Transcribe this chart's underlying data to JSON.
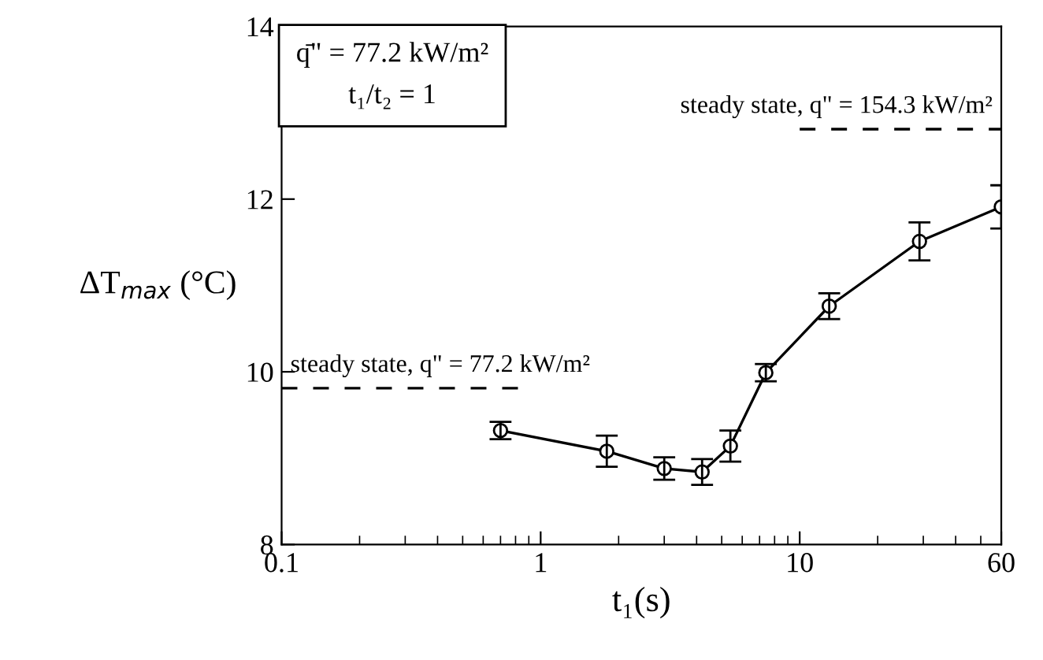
{
  "chart_data": {
    "type": "line",
    "xlabel": "t₁(s)",
    "ylabel": "ΔT$_{max}$ (°C)",
    "log": "x",
    "xlim": [
      0.1,
      60
    ],
    "xticks": [
      0.1,
      1,
      10,
      60
    ],
    "ylim": [
      8,
      14
    ],
    "yticks": [
      8,
      10,
      12,
      14
    ],
    "grid": false,
    "marker": "circle",
    "line_style": "solid",
    "series": [
      {
        "color": "#000000",
        "x": [
          0.7,
          1.8,
          3.0,
          4.2,
          5.4,
          7.4,
          13,
          29,
          60
        ],
        "values": [
          9.32,
          9.08,
          8.88,
          8.84,
          9.14,
          9.99,
          10.76,
          11.51,
          11.91
        ],
        "errors": [
          0.1,
          0.18,
          0.13,
          0.15,
          0.18,
          0.1,
          0.15,
          0.22,
          0.25
        ]
      },
      {
        "type": "line",
        "marker": "none",
        "line_style": "dashed",
        "color": "#000000",
        "x": [
          0.1,
          0.83
        ],
        "values": [
          9.81,
          9.81
        ]
      },
      {
        "type": "line",
        "marker": "none",
        "line_style": "dashed",
        "color": "#000000",
        "x": [
          10,
          60
        ],
        "values": [
          12.81,
          12.81
        ]
      }
    ],
    "annotations": [
      "q̄\" = 77.2 kW/m²",
      "t₁/t₂ = 1",
      {
        "text": "steady state, q\" = 77.2 kW/m²",
        "x": 0.1,
        "y": 9.81
      },
      {
        "text": "steady state, q\" = 154.3 kW/m²",
        "x": 60,
        "y": 12.81
      }
    ]
  }
}
